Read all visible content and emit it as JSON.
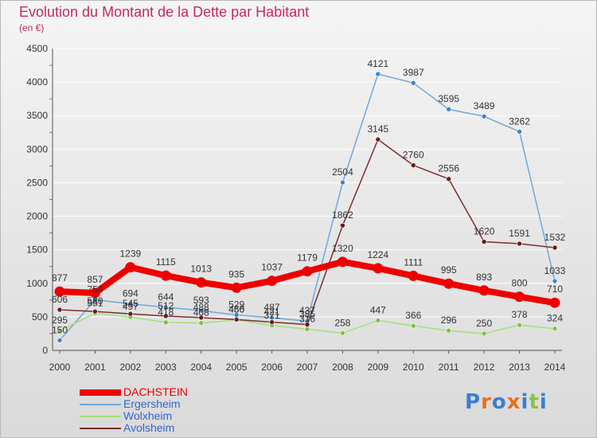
{
  "title": "Evolution du Montant de la Dette par Habitant",
  "unit_label": "(en €)",
  "logo": {
    "text": "Proxiti",
    "letter_colors": [
      "#3a7fd0",
      "#e8701a",
      "#3a7fd0",
      "#e8701a",
      "#3a7fd0",
      "#8bc34a",
      "#3a7fd0"
    ]
  },
  "colors": {
    "title": "#c8285e",
    "tick_label": "#333333",
    "grid": "#ffffff",
    "axis": "#555555"
  },
  "chart_data": {
    "type": "line",
    "title": "Evolution du Montant de la Dette par Habitant",
    "xlabel": "",
    "ylabel": "(en €)",
    "ylim": [
      0,
      4500
    ],
    "yticks": [
      0,
      500,
      1000,
      1500,
      2000,
      2500,
      3000,
      3500,
      4000,
      4500
    ],
    "grid": true,
    "legend_position": "bottom-left",
    "x": [
      "2000",
      "2001",
      "2002",
      "2003",
      "2004",
      "2005",
      "2006",
      "2007",
      "2008",
      "2009",
      "2010",
      "2011",
      "2012",
      "2013",
      "2014"
    ],
    "series": [
      {
        "name": "DACHSTEIN",
        "color": "#ee0000",
        "emphasis": true,
        "values": [
          877,
          857,
          1239,
          1115,
          1013,
          935,
          1037,
          1179,
          1320,
          1224,
          1111,
          995,
          893,
          800,
          710
        ]
      },
      {
        "name": "Ergersheim",
        "color": "#6fa8dc",
        "point_color": "#3d85c6",
        "values": [
          150,
          754,
          694,
          644,
          593,
          529,
          487,
          437,
          2504,
          4121,
          3987,
          3595,
          3489,
          3262,
          1033
        ]
      },
      {
        "name": "Wolxheim",
        "color": "#a3e07a",
        "point_color": "#7dc24a",
        "values": [
          295,
          551,
          497,
          418,
          408,
          456,
          371,
          316,
          258,
          447,
          366,
          296,
          250,
          378,
          324
        ]
      },
      {
        "name": "Avolsheim",
        "color": "#7a2d2d",
        "point_color": "#6b1a1a",
        "values": [
          606,
          580,
          545,
          512,
          488,
          460,
          421,
          385,
          1862,
          3145,
          2760,
          2556,
          1620,
          1591,
          1532
        ]
      }
    ]
  }
}
